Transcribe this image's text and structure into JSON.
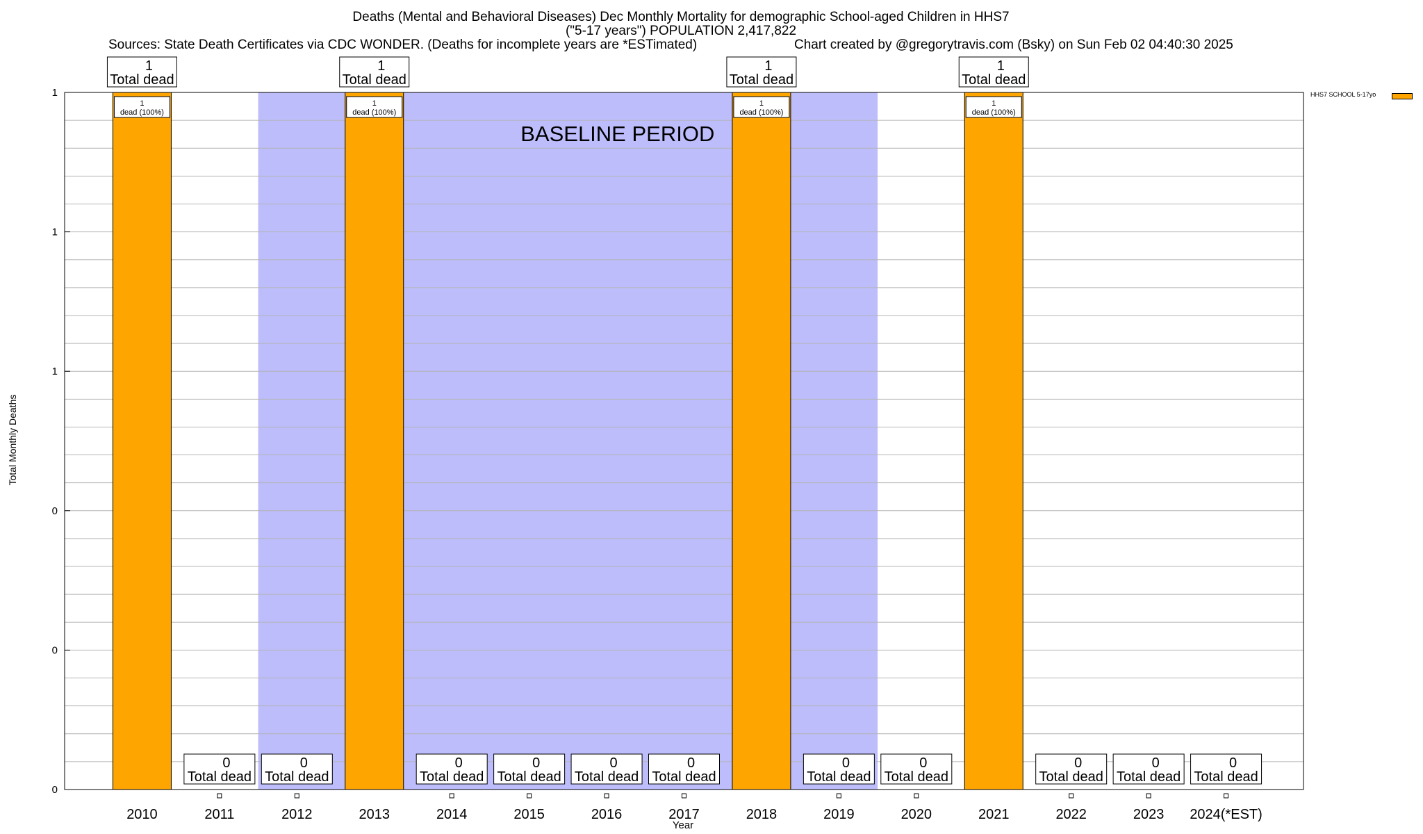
{
  "header": {
    "title_line1": "Deaths (Mental and Behavioral Diseases) Dec Monthly Mortality for demographic School-aged Children in HHS7",
    "title_line2": "(\"5-17 years\") POPULATION 2,417,822",
    "sources": "Sources: State Death Certificates via CDC WONDER. (Deaths for incomplete years are *ESTimated)",
    "credit": "Chart created by @gregorytravis.com (Bsky) on Sun Feb 02 04:40:30 2025"
  },
  "chart_data": {
    "type": "bar",
    "categories": [
      "2010",
      "2011",
      "2012",
      "2013",
      "2014",
      "2015",
      "2016",
      "2017",
      "2018",
      "2019",
      "2020",
      "2021",
      "2022",
      "2023",
      "2024(*EST)"
    ],
    "series": [
      {
        "name": "HHS7 SCHOOL 5-17yo",
        "color": "#ffa500",
        "values": [
          1,
          0,
          0,
          1,
          0,
          0,
          0,
          0,
          1,
          0,
          0,
          1,
          0,
          0,
          0
        ]
      }
    ],
    "xlabel": "Year",
    "ylabel": "Total Monthly Deaths",
    "ylim": [
      0,
      1
    ],
    "y_tick_labels": [
      "0",
      "0",
      "0",
      "1",
      "1",
      "1"
    ],
    "total_label_suffix": "Total dead",
    "bar_label_suffix": "dead (100%)",
    "baseline_label": "BASELINE PERIOD",
    "baseline_color": "#bdbdfc",
    "baseline_ranges": [
      [
        "2012",
        "2013"
      ],
      [
        "2014",
        "2019"
      ]
    ],
    "grid": true,
    "legend_position": "top-right"
  }
}
